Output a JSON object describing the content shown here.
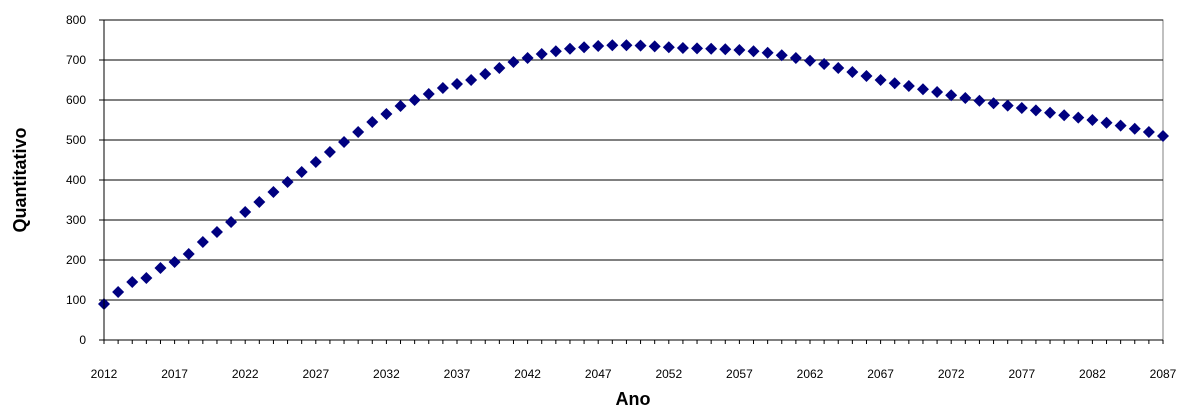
{
  "chart_data": {
    "type": "scatter",
    "title": "",
    "xlabel": "Ano",
    "ylabel": "Quantitativo",
    "xlim": [
      2012,
      2087
    ],
    "ylim": [
      0,
      800
    ],
    "x_ticks": [
      "2012",
      "2017",
      "2022",
      "2027",
      "2032",
      "2037",
      "2042",
      "2047",
      "2052",
      "2057",
      "2062",
      "2067",
      "2072",
      "2077",
      "2082",
      "2087"
    ],
    "y_ticks": [
      "0",
      "100",
      "200",
      "300",
      "400",
      "500",
      "600",
      "700",
      "800"
    ],
    "grid": "horizontal",
    "legend": "none",
    "marker": "diamond",
    "color": "#000080",
    "series": [
      {
        "x": [
          2012,
          2013,
          2014,
          2015,
          2016,
          2017,
          2018,
          2019,
          2020,
          2021,
          2022,
          2023,
          2024,
          2025,
          2026,
          2027,
          2028,
          2029,
          2030,
          2031,
          2032,
          2033,
          2034,
          2035,
          2036,
          2037,
          2038,
          2039,
          2040,
          2041,
          2042,
          2043,
          2044,
          2045,
          2046,
          2047,
          2048,
          2049,
          2050,
          2051,
          2052,
          2053,
          2054,
          2055,
          2056,
          2057,
          2058,
          2059,
          2060,
          2061,
          2062,
          2063,
          2064,
          2065,
          2066,
          2067,
          2068,
          2069,
          2070,
          2071,
          2072,
          2073,
          2074,
          2075,
          2076,
          2077,
          2078,
          2079,
          2080,
          2081,
          2082,
          2083,
          2084,
          2085,
          2086,
          2087
        ],
        "y": [
          90,
          120,
          145,
          155,
          180,
          195,
          215,
          245,
          270,
          295,
          320,
          345,
          370,
          395,
          420,
          445,
          470,
          495,
          520,
          545,
          565,
          585,
          600,
          615,
          630,
          640,
          650,
          665,
          680,
          695,
          705,
          715,
          722,
          728,
          732,
          735,
          737,
          737,
          736,
          734,
          732,
          730,
          729,
          728,
          727,
          725,
          722,
          718,
          712,
          705,
          698,
          690,
          680,
          670,
          660,
          650,
          642,
          635,
          627,
          620,
          612,
          605,
          598,
          592,
          586,
          580,
          574,
          568,
          562,
          556,
          550,
          543,
          536,
          528,
          520,
          510
        ]
      }
    ]
  }
}
